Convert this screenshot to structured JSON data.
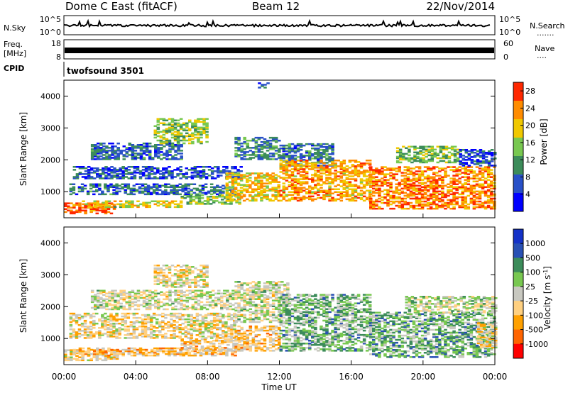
{
  "header": {
    "radar": "Dome C East (fitACF)",
    "beam": "Beam 12",
    "date": "22/Nov/2014"
  },
  "noise_panel": {
    "left_label": "N.Sky",
    "left_ticks": [
      "10^5",
      "10^0"
    ],
    "right_ticks": [
      "10^5",
      "10^0"
    ],
    "right_label": "N.Search",
    "right_dots": "......."
  },
  "freq_panel": {
    "left_label_1": "Freq.",
    "left_label_2": "[MHz]",
    "left_ticks": [
      "18",
      "8"
    ],
    "right_ticks": [
      "60",
      "0"
    ],
    "right_label": "Nave",
    "right_dots": "...."
  },
  "cpid": {
    "label": "CPID",
    "program": "twofsound 3501"
  },
  "colors": {
    "power": [
      "#0000ff",
      "#2850c8",
      "#3c8c5a",
      "#78c850",
      "#f0c800",
      "#ff8c00",
      "#ff2800"
    ],
    "velocity": [
      "#ff0000",
      "#ff6400",
      "#ffa000",
      "#ffd080",
      "#c8c8c0",
      "#78c850",
      "#3c8c5a",
      "#2850b4",
      "#1432c8"
    ]
  },
  "chart_data": [
    {
      "type": "heatmap",
      "name": "power",
      "xlabel": "",
      "ylabel": "Slant Range [km]",
      "xlim": [
        0,
        24
      ],
      "ylim": [
        180,
        4500
      ],
      "yticks": [
        "1000",
        "2000",
        "3000",
        "4000"
      ],
      "colorbar": {
        "label": "Power [dB]",
        "ticks": [
          "4",
          "8",
          "12",
          "16",
          "20",
          "24",
          "28"
        ],
        "range": [
          0,
          30
        ]
      },
      "regions": [
        {
          "t0": 0.0,
          "t1": 2.8,
          "r0": 300,
          "r1": 650,
          "v": 26
        },
        {
          "t0": 1.0,
          "t1": 6.5,
          "r0": 500,
          "r1": 700,
          "v": 18
        },
        {
          "t0": 6.5,
          "t1": 9.8,
          "r0": 600,
          "r1": 900,
          "v": 14
        },
        {
          "t0": 0.3,
          "t1": 9.5,
          "r0": 900,
          "r1": 1250,
          "v": 8
        },
        {
          "t0": 0.5,
          "t1": 9.8,
          "r0": 1400,
          "r1": 1800,
          "v": 6
        },
        {
          "t0": 1.5,
          "t1": 6.5,
          "r0": 2000,
          "r1": 2500,
          "v": 8
        },
        {
          "t0": 5.0,
          "t1": 8.0,
          "r0": 2500,
          "r1": 3300,
          "v": 15
        },
        {
          "t0": 9.5,
          "t1": 12.0,
          "r0": 2000,
          "r1": 2700,
          "v": 10
        },
        {
          "t0": 12.0,
          "t1": 15.0,
          "r0": 1800,
          "r1": 2500,
          "v": 9
        },
        {
          "t0": 9.0,
          "t1": 12.0,
          "r0": 700,
          "r1": 1600,
          "v": 20
        },
        {
          "t0": 12.0,
          "t1": 17.0,
          "r0": 700,
          "r1": 2000,
          "v": 22
        },
        {
          "t0": 17.0,
          "t1": 24.0,
          "r0": 450,
          "r1": 1800,
          "v": 24
        },
        {
          "t0": 18.5,
          "t1": 22.0,
          "r0": 1900,
          "r1": 2400,
          "v": 14
        },
        {
          "t0": 22.0,
          "t1": 24.0,
          "r0": 1800,
          "r1": 2300,
          "v": 6
        },
        {
          "t0": 10.8,
          "t1": 11.4,
          "r0": 4250,
          "r1": 4400,
          "v": 6
        }
      ]
    },
    {
      "type": "heatmap",
      "name": "velocity",
      "xlabel": "Time UT",
      "ylabel": "Slant Range [km]",
      "xlim": [
        0,
        24
      ],
      "ylim": [
        180,
        4500
      ],
      "xticks": [
        "00:00",
        "04:00",
        "08:00",
        "12:00",
        "16:00",
        "20:00",
        "00:00"
      ],
      "yticks": [
        "1000",
        "2000",
        "3000",
        "4000"
      ],
      "colorbar": {
        "label": "Velocity [m s^-1]",
        "ticks": [
          "1000",
          "500",
          "100",
          "25",
          "-25",
          "-100",
          "-500",
          "-1000"
        ],
        "range": [
          -1200,
          1200
        ]
      },
      "regions": [
        {
          "t0": 0.0,
          "t1": 3.0,
          "r0": 300,
          "r1": 650,
          "v": -200
        },
        {
          "t0": 0.5,
          "t1": 9.5,
          "r0": 450,
          "r1": 700,
          "v": -350
        },
        {
          "t0": 6.5,
          "t1": 10.0,
          "r0": 600,
          "r1": 1000,
          "v": -300
        },
        {
          "t0": 0.3,
          "t1": 9.5,
          "r0": 1000,
          "r1": 1800,
          "v": -150
        },
        {
          "t0": 1.5,
          "t1": 9.5,
          "r0": 1900,
          "r1": 2500,
          "v": 0
        },
        {
          "t0": 5.0,
          "t1": 8.0,
          "r0": 2600,
          "r1": 3300,
          "v": -120
        },
        {
          "t0": 9.5,
          "t1": 12.0,
          "r0": 600,
          "r1": 1400,
          "v": -300
        },
        {
          "t0": 9.5,
          "t1": 12.5,
          "r0": 1500,
          "r1": 2800,
          "v": 0
        },
        {
          "t0": 12.0,
          "t1": 17.0,
          "r0": 600,
          "r1": 2400,
          "v": 300
        },
        {
          "t0": 17.0,
          "t1": 24.0,
          "r0": 400,
          "r1": 1800,
          "v": 350
        },
        {
          "t0": 19.0,
          "t1": 24.0,
          "r0": 1800,
          "r1": 2300,
          "v": 60
        },
        {
          "t0": 23.0,
          "t1": 24.0,
          "r0": 700,
          "r1": 1500,
          "v": -200
        }
      ]
    }
  ]
}
